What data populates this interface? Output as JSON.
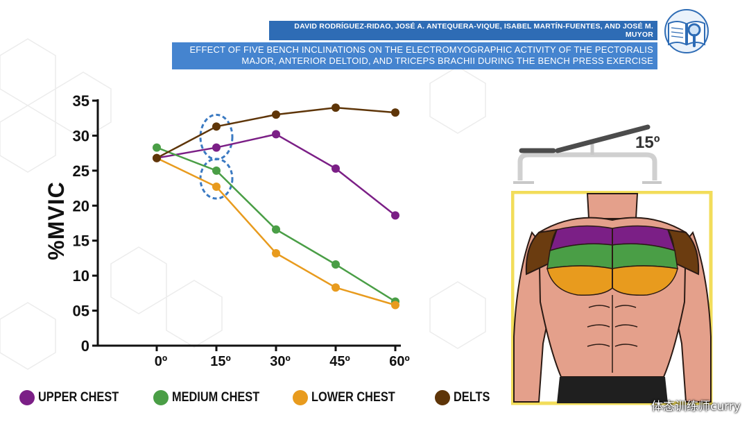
{
  "header": {
    "authors": "DAVID RODRÍGUEZ-RIDAO, JOSÉ A. ANTEQUERA-VIQUE, ISABEL MARTÍN-FUENTES, AND JOSÉ M. MUYOR",
    "title": "EFFECT OF FIVE BENCH INCLINATIONS ON THE ELECTROMYOGRAPHIC ACTIVITY OF THE PECTORALIS MAJOR, ANTERIOR DELTOID, AND TRICEPS BRACHII DURING THE BENCH PRESS EXERCISE",
    "logo_icon": "book-magnifier-icon"
  },
  "chart_data": {
    "type": "line",
    "title": "",
    "xlabel": "",
    "ylabel": "%MVIC",
    "categories": [
      "0º",
      "15º",
      "30º",
      "45º",
      "60º"
    ],
    "yticks": [
      "0",
      "05",
      "10",
      "15",
      "20",
      "25",
      "30",
      "35"
    ],
    "ylim": [
      0,
      35
    ],
    "grid": false,
    "legend_position": "bottom",
    "series": [
      {
        "name": "UPPER CHEST",
        "color": "#7b1f86",
        "values": [
          26.8,
          28.3,
          30.2,
          25.3,
          18.6
        ]
      },
      {
        "name": "MEDIUM CHEST",
        "color": "#4a9e46",
        "values": [
          28.3,
          25.0,
          16.6,
          11.6,
          6.3
        ]
      },
      {
        "name": "LOWER CHEST",
        "color": "#e89b1e",
        "values": [
          26.8,
          22.7,
          13.2,
          8.3,
          5.8
        ]
      },
      {
        "name": "DELTS",
        "color": "#5e3508",
        "values": [
          26.8,
          31.3,
          33.0,
          34.0,
          33.3
        ]
      }
    ],
    "highlight_category": "15º",
    "highlight_color": "#3b7ac2"
  },
  "illustration": {
    "bench_angle": "15º",
    "bench_icon": "incline-bench-icon",
    "torso_icon": "chest-muscles-illustration",
    "frame_color": "#f2dd5a"
  },
  "watermark": "体态训练师curry"
}
